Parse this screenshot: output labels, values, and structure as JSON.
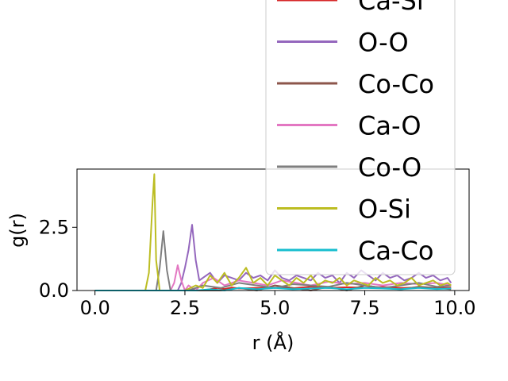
{
  "chart_data": {
    "type": "line",
    "title": "",
    "xlabel": "r (Å)",
    "ylabel": "g(r)",
    "xlim": [
      -0.5,
      10.4
    ],
    "ylim": [
      0,
      4.8
    ],
    "xticks": [
      0.0,
      2.5,
      5.0,
      7.5,
      10.0
    ],
    "xtick_labels": [
      "0.0",
      "2.5",
      "5.0",
      "7.5",
      "10.0"
    ],
    "yticks": [
      0.0,
      2.5
    ],
    "ytick_labels": [
      "0.0",
      "2.5"
    ],
    "grid": false,
    "legend_position": "upper right, extending above the axes",
    "series": [
      {
        "name": "Ca-Si",
        "color": "#d62728",
        "x": [
          0.0,
          1.0,
          2.0,
          3.0,
          3.2,
          3.4,
          3.6,
          3.8,
          4.0,
          4.5,
          5.0,
          5.5,
          6.0,
          6.5,
          7.0,
          7.5,
          8.0,
          8.5,
          9.0,
          9.5,
          9.9
        ],
        "y": [
          0.0,
          0.0,
          0.0,
          0.0,
          0.05,
          0.1,
          0.06,
          0.12,
          0.08,
          0.1,
          0.12,
          0.09,
          0.15,
          0.1,
          0.13,
          0.11,
          0.14,
          0.1,
          0.12,
          0.1,
          0.12
        ]
      },
      {
        "name": "O-O",
        "color": "#9467bd",
        "x": [
          0.0,
          2.3,
          2.4,
          2.5,
          2.6,
          2.7,
          2.8,
          2.9,
          3.0,
          3.2,
          3.4,
          3.6,
          3.8,
          4.0,
          4.2,
          4.4,
          4.6,
          4.8,
          5.0,
          5.2,
          5.4,
          5.6,
          5.8,
          6.0,
          6.2,
          6.4,
          6.6,
          6.8,
          7.0,
          7.2,
          7.4,
          7.6,
          7.8,
          8.0,
          8.2,
          8.4,
          8.6,
          8.8,
          9.0,
          9.2,
          9.4,
          9.6,
          9.8,
          9.9
        ],
        "y": [
          0.0,
          0.0,
          0.3,
          0.9,
          1.6,
          2.6,
          1.2,
          0.4,
          0.5,
          0.7,
          0.3,
          0.6,
          0.5,
          0.4,
          0.7,
          0.5,
          0.6,
          0.4,
          0.8,
          0.5,
          0.4,
          0.6,
          0.5,
          0.4,
          0.7,
          0.5,
          0.6,
          0.3,
          0.7,
          0.5,
          0.8,
          0.6,
          0.4,
          0.7,
          0.5,
          0.6,
          0.4,
          0.5,
          0.7,
          0.5,
          0.6,
          0.4,
          0.5,
          0.3
        ]
      },
      {
        "name": "Co-Co",
        "color": "#8c564b",
        "x": [
          0.0,
          3.0,
          3.5,
          4.0,
          4.5,
          5.0,
          5.5,
          6.0,
          6.5,
          7.0,
          7.5,
          8.0,
          8.5,
          9.0,
          9.5,
          9.9
        ],
        "y": [
          0.0,
          0.0,
          0.0,
          0.1,
          0.0,
          0.2,
          0.1,
          0.0,
          0.15,
          0.0,
          0.2,
          0.1,
          0.05,
          0.15,
          0.1,
          0.05
        ]
      },
      {
        "name": "Ca-O",
        "color": "#e377c2",
        "x": [
          0.0,
          2.1,
          2.2,
          2.3,
          2.4,
          2.5,
          2.6,
          2.8,
          3.0,
          3.3,
          3.6,
          4.0,
          4.4,
          4.8,
          5.2,
          5.6,
          6.0,
          6.5,
          7.0,
          7.5,
          8.0,
          8.5,
          9.0,
          9.5,
          9.9
        ],
        "y": [
          0.0,
          0.0,
          0.3,
          1.0,
          0.4,
          0.0,
          0.2,
          0.0,
          0.3,
          0.5,
          0.2,
          0.4,
          0.3,
          0.2,
          0.4,
          0.3,
          0.2,
          0.35,
          0.25,
          0.3,
          0.2,
          0.3,
          0.25,
          0.3,
          0.2
        ]
      },
      {
        "name": "Co-O",
        "color": "#7f7f7f",
        "x": [
          0.0,
          1.7,
          1.8,
          1.9,
          2.0,
          2.1,
          2.2,
          2.6,
          3.0,
          3.5,
          4.0,
          4.5,
          5.0,
          5.5,
          6.0,
          6.5,
          7.0,
          7.5,
          8.0,
          8.5,
          9.0,
          9.5,
          9.9
        ],
        "y": [
          0.0,
          0.0,
          0.9,
          2.35,
          0.8,
          0.0,
          0.0,
          0.0,
          0.2,
          0.1,
          0.3,
          0.2,
          0.1,
          0.25,
          0.2,
          0.15,
          0.3,
          0.2,
          0.1,
          0.2,
          0.3,
          0.15,
          0.2
        ]
      },
      {
        "name": "O-Si",
        "color": "#bcbd22",
        "x": [
          0.0,
          1.4,
          1.5,
          1.6,
          1.65,
          1.7,
          1.8,
          1.9,
          2.5,
          2.8,
          3.0,
          3.2,
          3.4,
          3.6,
          3.8,
          4.0,
          4.2,
          4.4,
          4.6,
          4.8,
          5.0,
          5.2,
          5.4,
          5.6,
          5.8,
          6.0,
          6.2,
          6.4,
          6.6,
          6.8,
          7.0,
          7.2,
          7.4,
          7.6,
          7.8,
          8.0,
          8.2,
          8.4,
          8.6,
          8.8,
          9.0,
          9.2,
          9.4,
          9.6,
          9.8,
          9.9
        ],
        "y": [
          0.0,
          0.0,
          0.7,
          3.5,
          4.6,
          1.2,
          0.0,
          0.0,
          0.0,
          0.2,
          0.1,
          0.6,
          0.3,
          0.7,
          0.2,
          0.5,
          0.9,
          0.3,
          0.5,
          0.2,
          0.6,
          0.4,
          0.2,
          0.5,
          0.3,
          0.6,
          0.2,
          0.4,
          0.3,
          0.5,
          0.2,
          0.4,
          0.3,
          0.2,
          0.5,
          0.3,
          0.4,
          0.2,
          0.3,
          0.5,
          0.2,
          0.3,
          0.4,
          0.2,
          0.3,
          0.2
        ]
      },
      {
        "name": "Ca-Co",
        "color": "#17becf",
        "x": [
          0.0,
          2.8,
          3.2,
          3.6,
          4.0,
          4.5,
          5.0,
          5.5,
          6.0,
          6.5,
          7.0,
          7.5,
          8.0,
          8.5,
          9.0,
          9.5,
          9.9
        ],
        "y": [
          0.0,
          0.0,
          0.05,
          0.0,
          0.1,
          0.05,
          0.1,
          0.05,
          0.08,
          0.1,
          0.05,
          0.1,
          0.08,
          0.05,
          0.1,
          0.06,
          0.08
        ]
      }
    ]
  }
}
